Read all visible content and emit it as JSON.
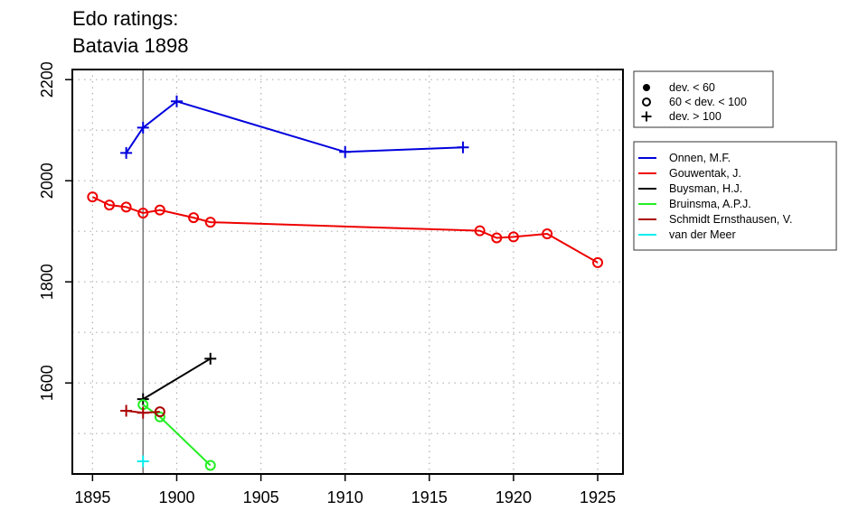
{
  "chart_data": {
    "type": "line",
    "title_lines": [
      "Edo ratings:",
      "Batavia 1898"
    ],
    "xlabel": "",
    "ylabel": "",
    "xlim": [
      1893.8,
      1926.5
    ],
    "ylim": [
      1420,
      2220
    ],
    "x_ticks": [
      1895,
      1900,
      1905,
      1910,
      1915,
      1920,
      1925
    ],
    "y_ticks": [
      1600,
      1800,
      2000,
      2200
    ],
    "grid": true,
    "grid_x": [
      1895,
      1900,
      1905,
      1910,
      1915,
      1920,
      1925
    ],
    "grid_y": [
      1500,
      1600,
      1700,
      1800,
      1900,
      2000,
      2100,
      2200
    ],
    "vertical_marker_x": 1898,
    "marker_legend": {
      "position": "top-right",
      "items": [
        {
          "marker": "dot",
          "label": "dev. < 60"
        },
        {
          "marker": "circle",
          "label": "60 < dev. < 100"
        },
        {
          "marker": "plus",
          "label": "dev. > 100"
        }
      ]
    },
    "series_legend_position": "right",
    "series": [
      {
        "name": "Onnen, M.F.",
        "color": "#0000dd",
        "points": [
          [
            1897,
            2055,
            "plus"
          ],
          [
            1898,
            2105,
            "plus"
          ],
          [
            1900,
            2157,
            "plus"
          ],
          [
            1910,
            2057,
            "plus"
          ],
          [
            1917,
            2066,
            "plus"
          ]
        ]
      },
      {
        "name": "Gouwentak, J.",
        "color": "#ee0000",
        "points": [
          [
            1895,
            1968,
            "circle"
          ],
          [
            1896,
            1952,
            "circle"
          ],
          [
            1897,
            1948,
            "circle"
          ],
          [
            1898,
            1936,
            "circle"
          ],
          [
            1899,
            1942,
            "circle"
          ],
          [
            1901,
            1927,
            "circle"
          ],
          [
            1902,
            1918,
            "circle"
          ],
          [
            1918,
            1901,
            "circle"
          ],
          [
            1919,
            1887,
            "circle"
          ],
          [
            1920,
            1889,
            "circle"
          ],
          [
            1922,
            1895,
            "circle"
          ],
          [
            1925,
            1838,
            "circle"
          ]
        ]
      },
      {
        "name": "Buysman, H.J.",
        "color": "#000000",
        "points": [
          [
            1898,
            1568,
            "plus"
          ],
          [
            1902,
            1648,
            "plus"
          ]
        ]
      },
      {
        "name": "Bruinsma, A.P.J.",
        "color": "#22ee22",
        "points": [
          [
            1898,
            1557,
            "circle"
          ],
          [
            1899,
            1533,
            "circle"
          ],
          [
            1902,
            1437,
            "circle"
          ]
        ]
      },
      {
        "name": "Schmidt Ernsthausen, V.",
        "color": "#aa0000",
        "points": [
          [
            1897,
            1545,
            "plus"
          ],
          [
            1898,
            1541,
            "plus"
          ],
          [
            1899,
            1543,
            "circle"
          ]
        ]
      },
      {
        "name": "van der Meer",
        "color": "#00eeee",
        "points": [
          [
            1898,
            1445,
            "plus"
          ]
        ]
      }
    ]
  }
}
